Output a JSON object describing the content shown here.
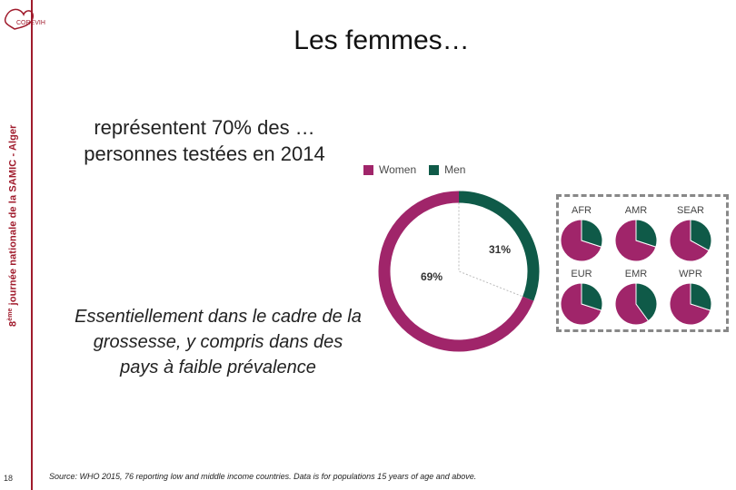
{
  "sidebar": {
    "logo_text": "COREVIH",
    "event_text_prefix": "8",
    "event_text_sup": "ème",
    "event_text_rest": " journée nationale de la SAMIC - Alger",
    "page_number": "18"
  },
  "slide": {
    "title": "Les femmes…",
    "subtitle_line1": "représentent 70% des …",
    "subtitle_line2": "personnes testées en 2014",
    "note": "Essentiellement dans le cadre de la grossesse, y compris dans des pays à faible prévalence",
    "source": "Source: WHO 2015, 76 reporting low and middle income countries. Data is for populations 15 years of age and above."
  },
  "colors": {
    "women": "#a0256a",
    "men": "#0f5a48",
    "accent": "#a01b2c"
  },
  "chart_data": {
    "type": "pie",
    "legend": [
      "Women",
      "Men"
    ],
    "main": {
      "women": 69,
      "men": 31,
      "labels": [
        "69%",
        "31%"
      ]
    },
    "regions": [
      {
        "name": "AFR",
        "men_pct": 30
      },
      {
        "name": "AMR",
        "men_pct": 30
      },
      {
        "name": "SEAR",
        "men_pct": 33
      },
      {
        "name": "EUR",
        "men_pct": 30
      },
      {
        "name": "EMR",
        "men_pct": 40
      },
      {
        "name": "WPR",
        "men_pct": 30
      }
    ]
  }
}
